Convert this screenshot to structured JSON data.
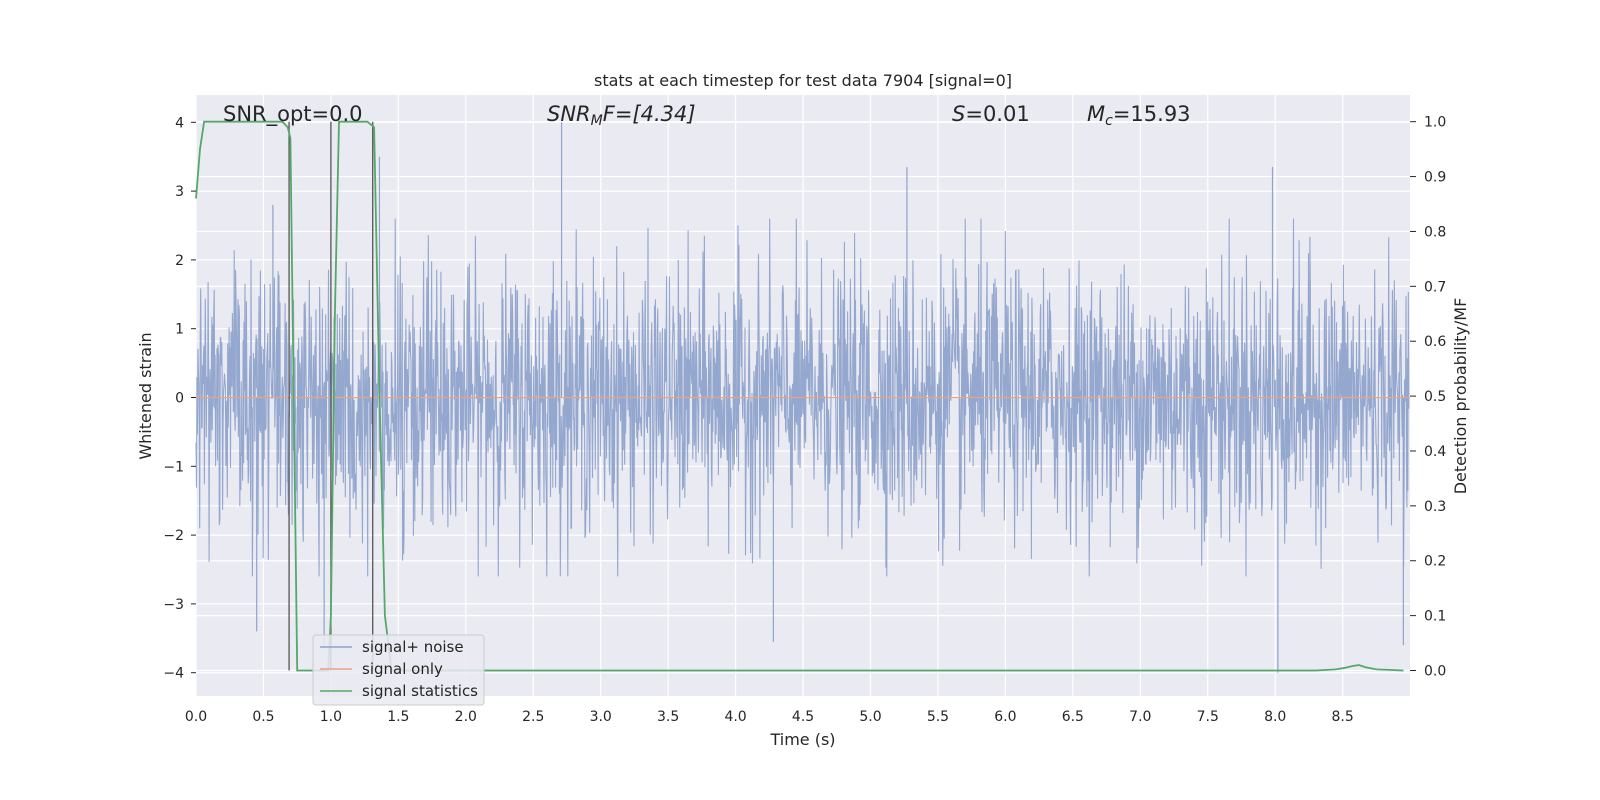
{
  "chart_data": {
    "type": "line",
    "title": "stats at each timestep for test data 7904 [signal=0]",
    "xlabel": "Time (s)",
    "ylabel": "Whitened strain",
    "ylabel_right": "Detection probability/MF",
    "xlim": [
      0,
      9.0
    ],
    "ylim": [
      -4.35,
      4.4
    ],
    "ylim_right": [
      -0.05,
      1.04
    ],
    "x_ticks": [
      "0.0",
      "0.5",
      "1.0",
      "1.5",
      "2.0",
      "2.5",
      "3.0",
      "3.5",
      "4.0",
      "4.5",
      "5.0",
      "5.5",
      "6.0",
      "6.5",
      "7.0",
      "7.5",
      "8.0",
      "8.5"
    ],
    "y_ticks": [
      "4",
      "3",
      "2",
      "1",
      "0",
      "−1",
      "−2",
      "−3",
      "−4"
    ],
    "y_ticks_right": [
      "1.0",
      "0.9",
      "0.8",
      "0.7",
      "0.6",
      "0.5",
      "0.4",
      "0.3",
      "0.2",
      "0.1",
      "0.0"
    ],
    "grid": true,
    "legend_position": "lower-left",
    "annotations": {
      "snr_opt": "SNR_opt=0.0",
      "snr_mf_base": "SNR",
      "snr_mf_sub": "M",
      "snr_mf_rest": "F=[4.34]",
      "s_sym": "S",
      "s_val": "=0.01",
      "mc_base": "M",
      "mc_sub": "c",
      "mc_val": "=15.93"
    },
    "vertical_lines_x": [
      0.69,
      1.0,
      1.31
    ],
    "series": [
      {
        "name": "signal+ noise",
        "color": "#8fa3cc",
        "description_shape": "whitened gaussian noise, |amplitude| mostly within ±2, peaks to about ±3.5 to 4",
        "amplitude_envelope_x": [
          0.0,
          0.5,
          1.0,
          1.5,
          2.0,
          2.5,
          3.0,
          3.5,
          4.0,
          4.5,
          5.0,
          5.5,
          6.0,
          6.5,
          7.0,
          7.5,
          8.0,
          8.5,
          9.0
        ],
        "amplitude_envelope_y": [
          2.3,
          2.4,
          2.5,
          2.4,
          2.3,
          2.5,
          2.4,
          2.3,
          2.4,
          2.3,
          2.4,
          2.5,
          2.4,
          2.3,
          2.4,
          2.5,
          2.6,
          2.3,
          2.3
        ],
        "spikes": [
          {
            "x": 0.45,
            "y": -3.4
          },
          {
            "x": 0.57,
            "y": 2.8
          },
          {
            "x": 0.95,
            "y": -3.6
          },
          {
            "x": 1.36,
            "y": 3.5
          },
          {
            "x": 2.71,
            "y": 4.0
          },
          {
            "x": 5.27,
            "y": 3.35
          },
          {
            "x": 4.28,
            "y": -3.55
          },
          {
            "x": 7.98,
            "y": 3.35
          },
          {
            "x": 8.02,
            "y": -4.0
          },
          {
            "x": 8.95,
            "y": -3.6
          }
        ]
      },
      {
        "name": "signal only",
        "color": "#e8a286",
        "x": [
          0,
          9.0
        ],
        "y": [
          0,
          0
        ]
      },
      {
        "name": "signal statistics",
        "color": "#55a868",
        "axis": "right",
        "x": [
          0.0,
          0.03,
          0.06,
          0.1,
          0.15,
          0.2,
          0.3,
          0.4,
          0.5,
          0.6,
          0.64,
          0.68,
          0.7,
          0.75,
          0.8,
          0.9,
          0.98,
          1.0,
          1.03,
          1.06,
          1.1,
          1.2,
          1.27,
          1.32,
          1.36,
          1.4,
          1.45,
          2.0,
          3.0,
          4.0,
          5.0,
          6.0,
          7.0,
          8.0,
          8.3,
          8.45,
          8.52,
          8.57,
          8.62,
          8.67,
          8.75,
          8.95
        ],
        "y": [
          0.86,
          0.95,
          1.0,
          1.0,
          1.0,
          1.0,
          1.0,
          1.0,
          1.0,
          1.0,
          1.0,
          0.99,
          0.97,
          0.0,
          0.0,
          0.0,
          0.0,
          0.1,
          0.65,
          1.0,
          1.0,
          1.0,
          1.0,
          0.99,
          0.5,
          0.1,
          0.0,
          0.0,
          0.0,
          0.0,
          0.0,
          0.0,
          0.0,
          0.0,
          0.0,
          0.002,
          0.005,
          0.008,
          0.01,
          0.006,
          0.002,
          0.0
        ]
      }
    ]
  }
}
